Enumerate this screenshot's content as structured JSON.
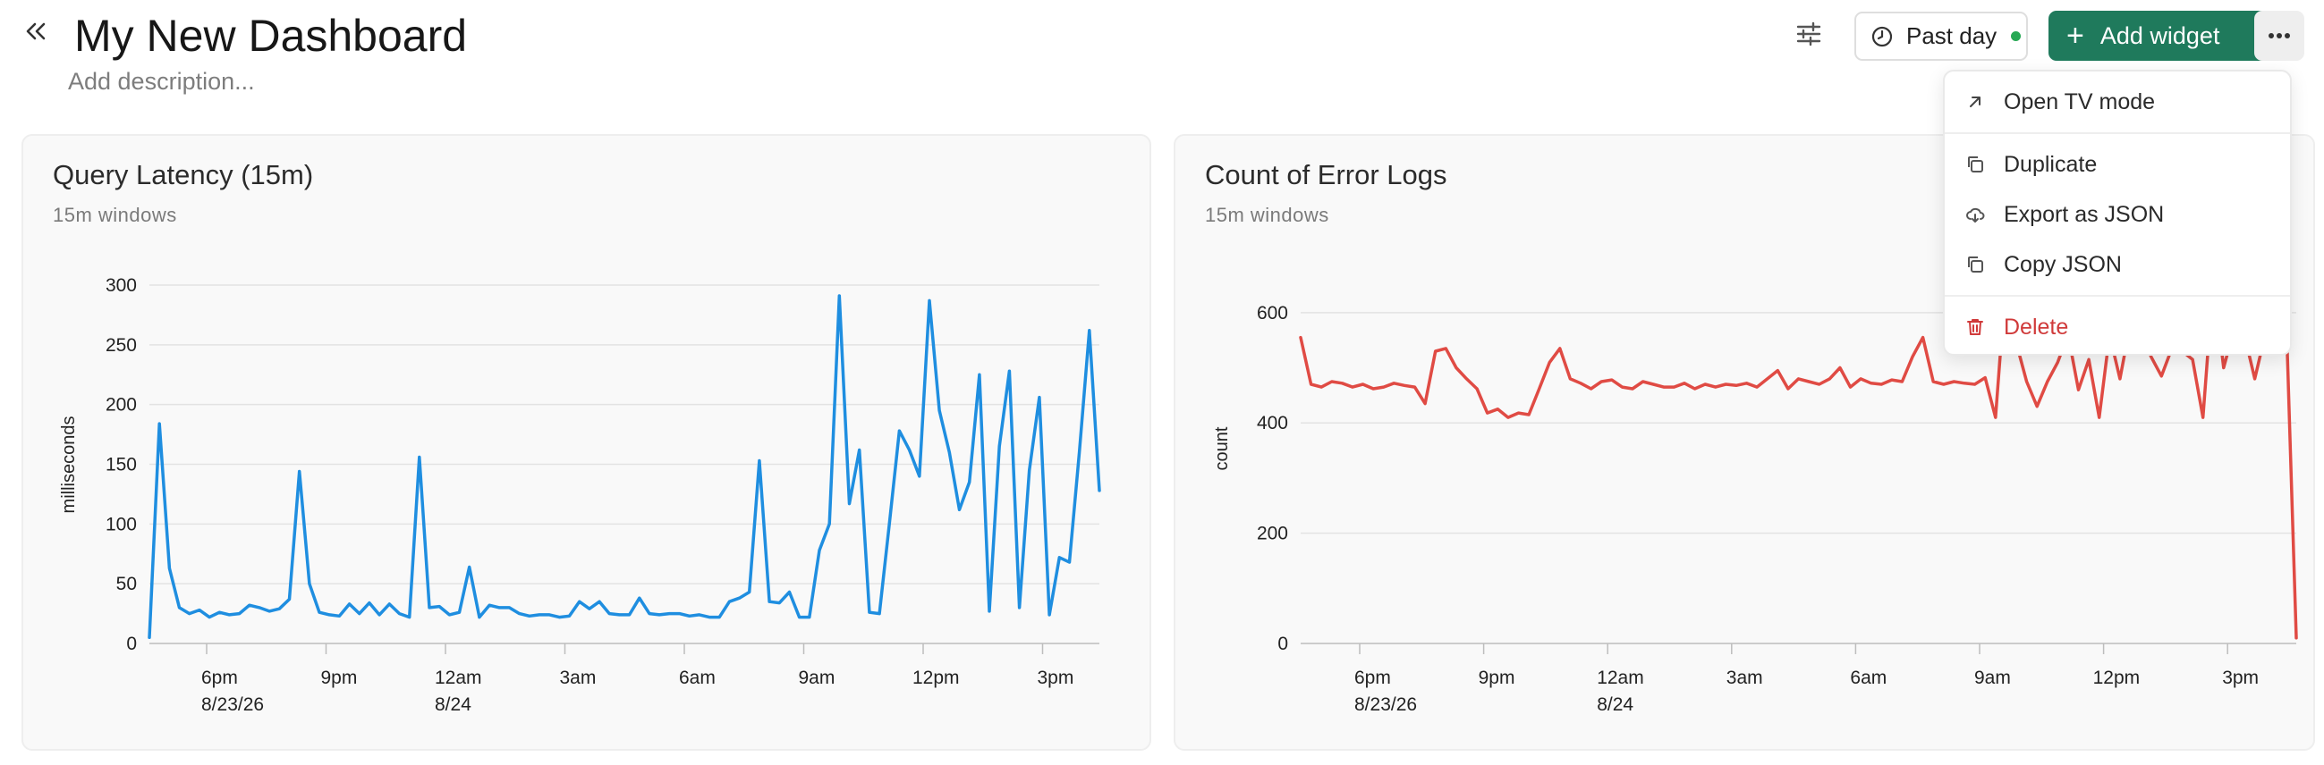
{
  "header": {
    "title": "My New Dashboard",
    "description_placeholder": "Add description..."
  },
  "toolbar": {
    "time_range_label": "Past day",
    "time_status_color": "#27a854",
    "add_widget_label": "Add widget",
    "accent_color": "#1f7a5c"
  },
  "menu": {
    "items": [
      {
        "label": "Open TV mode",
        "icon": "arrow-up-right-icon"
      },
      {
        "label": "Duplicate",
        "icon": "copy-icon"
      },
      {
        "label": "Export as JSON",
        "icon": "cloud-download-icon"
      },
      {
        "label": "Copy JSON",
        "icon": "copy-icon"
      },
      {
        "label": "Delete",
        "icon": "trash-icon"
      }
    ]
  },
  "panels": [
    {
      "title": "Query Latency (15m)",
      "subtitle": "15m windows"
    },
    {
      "title": "Count of Error Logs",
      "subtitle": "15m windows"
    }
  ],
  "chart_data": [
    {
      "type": "line",
      "title": "Query Latency (15m)",
      "subtitle": "15m windows",
      "ylabel": "milliseconds",
      "xlabel": "",
      "ylim": [
        0,
        300
      ],
      "yticks": [
        0,
        50,
        100,
        150,
        200,
        250,
        300
      ],
      "xticks": [
        {
          "label": "6pm",
          "sub": "8/23/26"
        },
        {
          "label": "9pm",
          "sub": ""
        },
        {
          "label": "12am",
          "sub": "8/24"
        },
        {
          "label": "3am",
          "sub": ""
        },
        {
          "label": "6am",
          "sub": ""
        },
        {
          "label": "9am",
          "sub": ""
        },
        {
          "label": "12pm",
          "sub": ""
        },
        {
          "label": "3pm",
          "sub": ""
        }
      ],
      "x_start": "2026-08-23T16:30",
      "x_interval_minutes": 15,
      "grid": true,
      "series": [
        {
          "color": "#1f8ee0",
          "values": [
            5,
            184,
            63,
            30,
            25,
            28,
            22,
            26,
            24,
            25,
            32,
            30,
            27,
            29,
            37,
            144,
            50,
            26,
            24,
            23,
            33,
            25,
            34,
            24,
            33,
            25,
            22,
            156,
            30,
            31,
            24,
            26,
            64,
            22,
            32,
            30,
            30,
            25,
            23,
            24,
            24,
            22,
            23,
            35,
            29,
            35,
            25,
            24,
            24,
            38,
            25,
            24,
            25,
            25,
            23,
            24,
            22,
            22,
            35,
            38,
            43,
            153,
            35,
            34,
            43,
            22,
            22,
            78,
            100,
            291,
            117,
            162,
            26,
            25,
            100,
            178,
            162,
            140,
            287,
            195,
            160,
            112,
            135,
            225,
            27,
            165,
            228,
            30,
            145,
            206,
            24,
            72,
            68,
            160,
            262,
            128
          ]
        }
      ]
    },
    {
      "type": "line",
      "title": "Count of Error Logs",
      "subtitle": "15m windows",
      "ylabel": "count",
      "xlabel": "",
      "ylim": [
        0,
        650
      ],
      "yticks": [
        0,
        200,
        400,
        600
      ],
      "xticks": [
        {
          "label": "6pm",
          "sub": "8/23/26"
        },
        {
          "label": "9pm",
          "sub": ""
        },
        {
          "label": "12am",
          "sub": "8/24"
        },
        {
          "label": "3am",
          "sub": ""
        },
        {
          "label": "6am",
          "sub": ""
        },
        {
          "label": "9am",
          "sub": ""
        },
        {
          "label": "12pm",
          "sub": ""
        },
        {
          "label": "3pm",
          "sub": ""
        }
      ],
      "x_start": "2026-08-23T16:30",
      "x_interval_minutes": 15,
      "grid": true,
      "series": [
        {
          "color": "#e04b44",
          "values": [
            555,
            470,
            465,
            475,
            472,
            465,
            470,
            462,
            465,
            472,
            468,
            465,
            435,
            530,
            535,
            500,
            480,
            462,
            418,
            425,
            410,
            418,
            415,
            462,
            510,
            535,
            480,
            472,
            462,
            475,
            478,
            465,
            462,
            475,
            470,
            465,
            465,
            472,
            462,
            470,
            465,
            470,
            468,
            472,
            465,
            480,
            495,
            462,
            480,
            475,
            470,
            480,
            500,
            465,
            480,
            472,
            470,
            478,
            475,
            520,
            555,
            475,
            470,
            475,
            472,
            470,
            482,
            410,
            660,
            545,
            475,
            430,
            475,
            510,
            560,
            460,
            515,
            410,
            560,
            480,
            580,
            565,
            520,
            485,
            535,
            530,
            515,
            410,
            660,
            500,
            570,
            560,
            480,
            560,
            530,
            610,
            10
          ]
        }
      ]
    }
  ]
}
